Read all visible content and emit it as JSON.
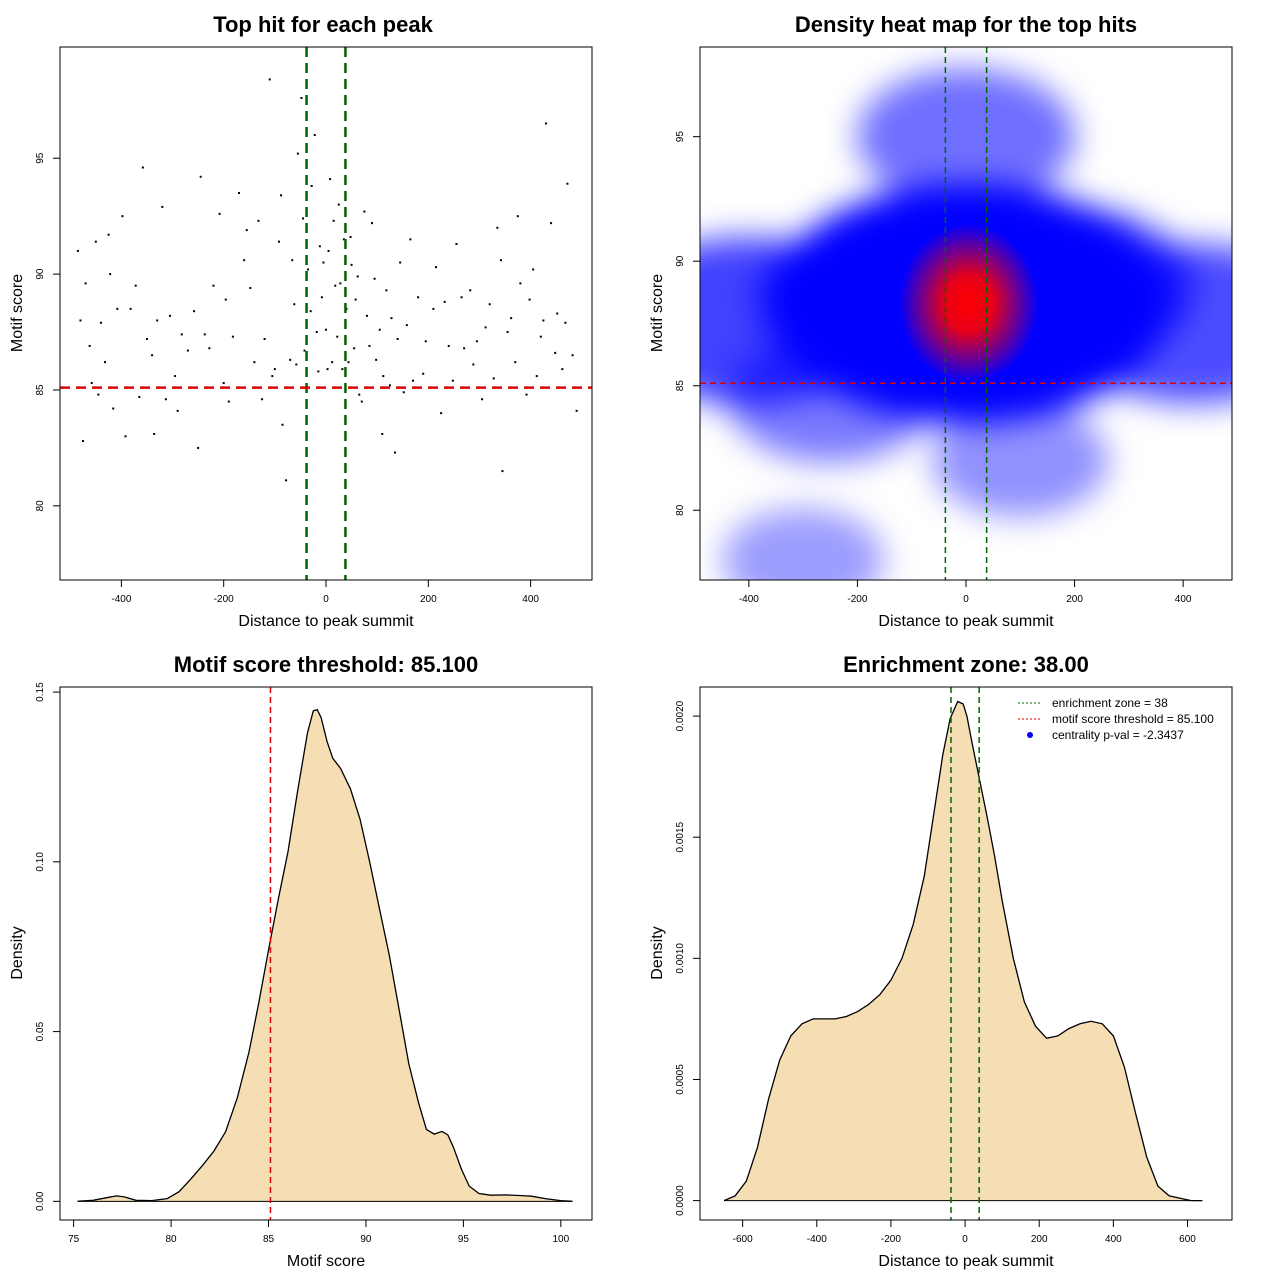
{
  "chart_data": [
    {
      "type": "scatter",
      "title": "Top hit for each peak",
      "xlabel": "Distance to peak summit",
      "ylabel": "Motif score",
      "xlim": [
        -520,
        520
      ],
      "ylim": [
        76.8,
        99.8
      ],
      "xticks": [
        -400,
        -200,
        0,
        200,
        400
      ],
      "xticklabels": [
        "-400",
        "-200",
        "0",
        "200",
        "400"
      ],
      "yticks": [
        80,
        85,
        90,
        95
      ],
      "yticklabels": [
        "80",
        "85",
        "90",
        "95"
      ],
      "grid": false,
      "enrichment_zone": 38,
      "score_threshold": 85.1,
      "colors": {
        "points": "#000000",
        "zone": "#006400",
        "threshold": "#dd0000"
      },
      "points": [
        [
          -485,
          91
        ],
        [
          -480,
          88
        ],
        [
          -470,
          89.6
        ],
        [
          -462,
          86.9
        ],
        [
          -458,
          85.3
        ],
        [
          -450,
          91.4
        ],
        [
          -440,
          87.9
        ],
        [
          -432,
          86.2
        ],
        [
          -422,
          90
        ],
        [
          -416,
          84.2
        ],
        [
          -408,
          88.5
        ],
        [
          -398,
          92.5
        ],
        [
          -392,
          83
        ],
        [
          -382,
          88.5
        ],
        [
          -372,
          89.5
        ],
        [
          -358,
          94.6
        ],
        [
          -350,
          87.2
        ],
        [
          -340,
          86.5
        ],
        [
          -336,
          83.1
        ],
        [
          -330,
          88
        ],
        [
          -320,
          92.9
        ],
        [
          -305,
          88.2
        ],
        [
          -295,
          85.6
        ],
        [
          -282,
          87.4
        ],
        [
          -270,
          86.7
        ],
        [
          -258,
          88.4
        ],
        [
          -245,
          94.2
        ],
        [
          -237,
          87.4
        ],
        [
          -228,
          86.8
        ],
        [
          -220,
          89.5
        ],
        [
          -208,
          92.6
        ],
        [
          -200,
          85.3
        ],
        [
          -190,
          84.5
        ],
        [
          -182,
          87.3
        ],
        [
          -170,
          93.5
        ],
        [
          -160,
          90.6
        ],
        [
          -148,
          89.4
        ],
        [
          -140,
          86.2
        ],
        [
          -132,
          92.3
        ],
        [
          -120,
          87.2
        ],
        [
          -110,
          98.4
        ],
        [
          -100,
          85.9
        ],
        [
          -92,
          91.4
        ],
        [
          -85,
          83.5
        ],
        [
          -78,
          81.1
        ],
        [
          -70,
          86.3
        ],
        [
          -62,
          88.7
        ],
        [
          -55,
          95.2
        ],
        [
          -48,
          97.6
        ],
        [
          -42,
          86.7
        ],
        [
          -35,
          90.2
        ],
        [
          -28,
          93.8
        ],
        [
          -22,
          96
        ],
        [
          -15,
          85.8
        ],
        [
          -8,
          89
        ],
        [
          0,
          87.6
        ],
        [
          5,
          91
        ],
        [
          12,
          86.2
        ],
        [
          18,
          89.5
        ],
        [
          25,
          93
        ],
        [
          32,
          85.9
        ],
        [
          40,
          88.5
        ],
        [
          48,
          91.6
        ],
        [
          55,
          86.8
        ],
        [
          62,
          89.9
        ],
        [
          70,
          84.5
        ],
        [
          80,
          88.2
        ],
        [
          90,
          92.2
        ],
        [
          98,
          86.3
        ],
        [
          110,
          83.1
        ],
        [
          118,
          89.3
        ],
        [
          125,
          85.2
        ],
        [
          135,
          82.3
        ],
        [
          145,
          90.5
        ],
        [
          158,
          87.8
        ],
        [
          170,
          85.4
        ],
        [
          180,
          89
        ],
        [
          195,
          87.1
        ],
        [
          210,
          88.5
        ],
        [
          225,
          84
        ],
        [
          240,
          86.9
        ],
        [
          255,
          91.3
        ],
        [
          270,
          86.8
        ],
        [
          282,
          89.3
        ],
        [
          295,
          87.1
        ],
        [
          305,
          84.6
        ],
        [
          320,
          88.7
        ],
        [
          335,
          92
        ],
        [
          345,
          81.5
        ],
        [
          355,
          87.5
        ],
        [
          370,
          86.2
        ],
        [
          380,
          89.6
        ],
        [
          392,
          84.8
        ],
        [
          405,
          90.2
        ],
        [
          420,
          87.3
        ],
        [
          430,
          96.5
        ],
        [
          440,
          92.2
        ],
        [
          452,
          88.3
        ],
        [
          462,
          85.9
        ],
        [
          472,
          93.9
        ],
        [
          482,
          86.5
        ],
        [
          490,
          84.1
        ],
        [
          -475,
          82.8
        ],
        [
          -445,
          84.8
        ],
        [
          -425,
          91.7
        ],
        [
          -365,
          84.7
        ],
        [
          -313,
          84.6
        ],
        [
          -290,
          84.1
        ],
        [
          -250,
          82.5
        ],
        [
          -196,
          88.9
        ],
        [
          -155,
          91.9
        ],
        [
          -125,
          84.6
        ],
        [
          -105,
          85.6
        ],
        [
          -88,
          93.4
        ],
        [
          -66,
          90.6
        ],
        [
          -58,
          86.1
        ],
        [
          -45,
          92.4
        ],
        [
          -38,
          84.3
        ],
        [
          -30,
          88.4
        ],
        [
          -18,
          87.5
        ],
        [
          -12,
          91.2
        ],
        [
          -5,
          90.5
        ],
        [
          3,
          85.9
        ],
        [
          8,
          94.1
        ],
        [
          15,
          92.3
        ],
        [
          22,
          87.3
        ],
        [
          28,
          89.6
        ],
        [
          35,
          91.5
        ],
        [
          44,
          86.2
        ],
        [
          50,
          90.4
        ],
        [
          58,
          88.9
        ],
        [
          65,
          84.8
        ],
        [
          75,
          92.7
        ],
        [
          85,
          86.9
        ],
        [
          95,
          89.8
        ],
        [
          105,
          87.6
        ],
        [
          112,
          85.6
        ],
        [
          128,
          88.1
        ],
        [
          140,
          87.2
        ],
        [
          152,
          84.9
        ],
        [
          165,
          91.5
        ],
        [
          190,
          85.7
        ],
        [
          215,
          90.3
        ],
        [
          232,
          88.8
        ],
        [
          248,
          85.4
        ],
        [
          265,
          89
        ],
        [
          288,
          86.1
        ],
        [
          312,
          87.7
        ],
        [
          328,
          85.5
        ],
        [
          342,
          90.6
        ],
        [
          362,
          88.1
        ],
        [
          375,
          92.5
        ],
        [
          398,
          88.9
        ],
        [
          412,
          85.6
        ],
        [
          425,
          88
        ],
        [
          448,
          86.6
        ],
        [
          468,
          87.9
        ]
      ],
      "notes": "points are approximate; the original shows more than 500"
    },
    {
      "type": "heatmap",
      "title": "Density heat map for the top hits",
      "xlabel": "Distance to peak summit",
      "ylabel": "Motif score",
      "xlim": [
        -490,
        490
      ],
      "ylim": [
        77.2,
        98.6
      ],
      "xticks": [
        -400,
        -200,
        0,
        200,
        400
      ],
      "xticklabels": [
        "-400",
        "-200",
        "0",
        "200",
        "400"
      ],
      "yticks": [
        80,
        85,
        90,
        95
      ],
      "yticklabels": [
        "80",
        "85",
        "90",
        "95"
      ],
      "enrichment_zone": 38,
      "score_threshold": 85.1,
      "colors": {
        "low": "#ffffff",
        "mid": "#0000ff",
        "high": "#ff0000",
        "zone": "#006400",
        "threshold": "#dd0000"
      },
      "density_peaks": [
        {
          "x": 5,
          "y": 88.3,
          "weight": 1.0
        },
        {
          "x": -400,
          "y": 87.6,
          "weight": 0.55
        },
        {
          "x": 420,
          "y": 87.5,
          "weight": 0.5
        },
        {
          "x": 180,
          "y": 89,
          "weight": 0.5
        },
        {
          "x": -160,
          "y": 88.5,
          "weight": 0.45
        },
        {
          "x": 0,
          "y": 95,
          "weight": 0.35
        },
        {
          "x": -250,
          "y": 84.5,
          "weight": 0.3
        },
        {
          "x": 100,
          "y": 82,
          "weight": 0.2
        },
        {
          "x": -300,
          "y": 78,
          "weight": 0.15
        }
      ]
    },
    {
      "type": "area",
      "title": "Motif score threshold: 85.100",
      "xlabel": "Motif score",
      "ylabel": "Density",
      "xlim": [
        74.3,
        101.6
      ],
      "ylim": [
        -0.0055,
        0.1515
      ],
      "xticks": [
        75,
        80,
        85,
        90,
        95,
        100
      ],
      "xticklabels": [
        "75",
        "80",
        "85",
        "90",
        "95",
        "100"
      ],
      "yticks": [
        0,
        0.05,
        0.1,
        0.15
      ],
      "yticklabels": [
        "0.00",
        "0.05",
        "0.10",
        "0.15"
      ],
      "score_threshold": 85.1,
      "colors": {
        "fill": "#f5deb3",
        "line": "#000000",
        "threshold": "#dd0000"
      },
      "x": [
        75.2,
        76,
        76.8,
        77.2,
        77.6,
        78.2,
        79,
        79.8,
        80.4,
        81,
        81.6,
        82.2,
        82.8,
        83.4,
        84,
        84.5,
        85,
        85.5,
        86,
        86.5,
        87,
        87.3,
        87.5,
        87.7,
        88,
        88.3,
        88.7,
        89.2,
        89.7,
        90.2,
        90.7,
        91.2,
        91.7,
        92.2,
        92.7,
        93.1,
        93.5,
        93.9,
        94.2,
        94.5,
        94.9,
        95.3,
        95.8,
        96.4,
        97.2,
        98,
        98.5,
        99.2,
        100,
        100.6
      ],
      "y": [
        0,
        0.0003,
        0.0012,
        0.0016,
        0.0013,
        0.0003,
        0.0002,
        0.0008,
        0.0028,
        0.0065,
        0.0105,
        0.0148,
        0.0205,
        0.0305,
        0.044,
        0.0585,
        0.074,
        0.089,
        0.103,
        0.121,
        0.138,
        0.1445,
        0.1448,
        0.1425,
        0.1355,
        0.1305,
        0.1275,
        0.1215,
        0.1125,
        0.0998,
        0.086,
        0.0725,
        0.0565,
        0.0405,
        0.029,
        0.0212,
        0.0198,
        0.0206,
        0.0196,
        0.0158,
        0.0095,
        0.0045,
        0.0023,
        0.0018,
        0.0019,
        0.0017,
        0.0015,
        0.0008,
        0.0002,
        0
      ]
    },
    {
      "type": "area",
      "title": "Enrichment zone: 38.00",
      "xlabel": "Distance to peak summit",
      "ylabel": "Density",
      "xlim": [
        -715,
        720
      ],
      "ylim": [
        -8e-05,
        0.00212
      ],
      "xticks": [
        -600,
        -400,
        -200,
        0,
        200,
        400,
        600
      ],
      "xticklabels": [
        "-600",
        "-400",
        "-200",
        "0",
        "200",
        "400",
        "600"
      ],
      "yticks": [
        0,
        0.0005,
        0.001,
        0.0015,
        0.002
      ],
      "yticklabels": [
        "0.0000",
        "0.0005",
        "0.0010",
        "0.0015",
        "0.0020"
      ],
      "enrichment_zone": 38,
      "colors": {
        "fill": "#f5deb3",
        "line": "#000000",
        "zone": "#006400",
        "threshold": "#dd0000",
        "pval": "#0000ff"
      },
      "x": [
        -650,
        -620,
        -590,
        -560,
        -530,
        -500,
        -470,
        -440,
        -410,
        -380,
        -350,
        -320,
        -290,
        -260,
        -230,
        -200,
        -170,
        -140,
        -110,
        -80,
        -60,
        -40,
        -20,
        -5,
        5,
        20,
        40,
        60,
        80,
        100,
        130,
        160,
        190,
        220,
        250,
        280,
        310,
        340,
        370,
        400,
        430,
        460,
        490,
        520,
        550,
        580,
        610,
        640
      ],
      "y": [
        0,
        2e-05,
        8e-05,
        0.00022,
        0.00042,
        0.00058,
        0.00068,
        0.00073,
        0.00075,
        0.00075,
        0.00075,
        0.00076,
        0.00078,
        0.00081,
        0.00085,
        0.00091,
        0.001,
        0.00114,
        0.00134,
        0.00164,
        0.00184,
        0.00199,
        0.00206,
        0.00205,
        0.002,
        0.00188,
        0.00173,
        0.00158,
        0.00142,
        0.00124,
        0.001,
        0.00082,
        0.00072,
        0.00067,
        0.00068,
        0.00071,
        0.00073,
        0.00074,
        0.00073,
        0.00068,
        0.00055,
        0.00036,
        0.00018,
        6e-05,
        2e-05,
        1e-05,
        0,
        0
      ],
      "legend": {
        "position": "top-right",
        "entries": [
          {
            "label": "enrichment zone = 38",
            "style": "dotted",
            "color": "#006400"
          },
          {
            "label": "motif score threshold = 85.100",
            "style": "dotted",
            "color": "#dd0000"
          },
          {
            "label": "centrality p-val = -2.3437",
            "style": "point",
            "color": "#0000ff"
          }
        ]
      }
    }
  ]
}
